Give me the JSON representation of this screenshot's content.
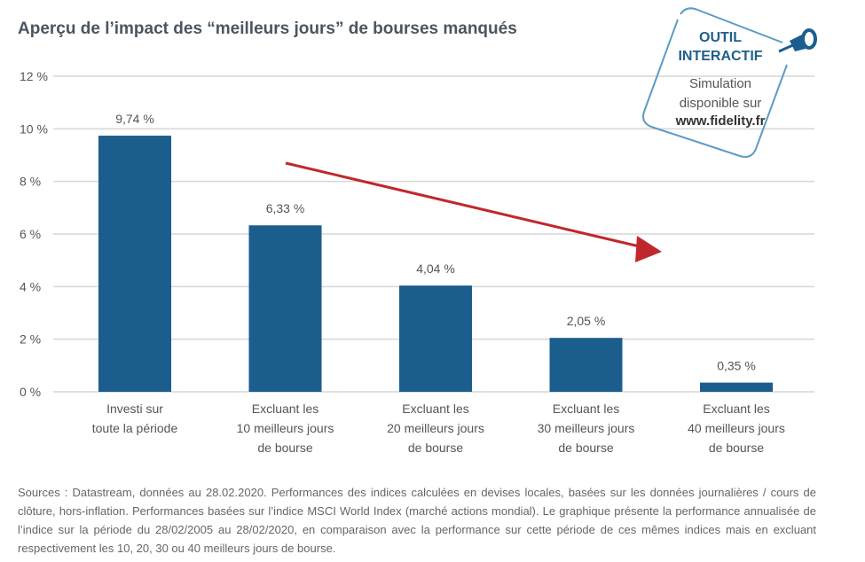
{
  "chart_data": {
    "type": "bar",
    "title": "Aperçu de l’impact des “meilleurs jours” de bourses manqués",
    "categories": [
      [
        "Investi sur",
        "toute la période"
      ],
      [
        "Excluant les",
        "10 meilleurs jours",
        "de bourse"
      ],
      [
        "Excluant les",
        "20 meilleurs jours",
        "de bourse"
      ],
      [
        "Excluant les",
        "30 meilleurs jours",
        "de bourse"
      ],
      [
        "Excluant les",
        "40 meilleurs jours",
        "de bourse"
      ]
    ],
    "values": [
      9.74,
      6.33,
      4.04,
      2.05,
      0.35
    ],
    "data_labels": [
      "9,74 %",
      "6,33 %",
      "4,04 %",
      "2,05 %",
      "0,35 %"
    ],
    "yticks": [
      "0 %",
      "2 %",
      "4 %",
      "6 %",
      "8 %",
      "10 %",
      "12 %"
    ],
    "ylim": [
      0,
      12
    ],
    "grid": true,
    "bar_color": "#1b5e8e",
    "annotation": "downward trend arrow",
    "arrow_color": "#c0282d"
  },
  "badge": {
    "line1": "OUTIL",
    "line2": "INTERACTIF",
    "line3": "Simulation",
    "line4": "disponible sur",
    "url": "www.fidelity.fr",
    "icon": "pushpin-icon"
  },
  "source": "Sources : Datastream, données au 28.02.2020. Performances des indices calculées en devises locales, basées sur les données journalières / cours de clôture, hors-inflation. Performances basées sur l’indice MSCI World Index (marché actions mondial). Le graphique présente la performance annualisée de l’indice sur la période du 28/02/2005 au 28/02/2020, en comparaison avec la performance sur cette période de ces mêmes indices mais en excluant respectivement les 10, 20, 30 ou 40 meilleurs jours de bourse."
}
